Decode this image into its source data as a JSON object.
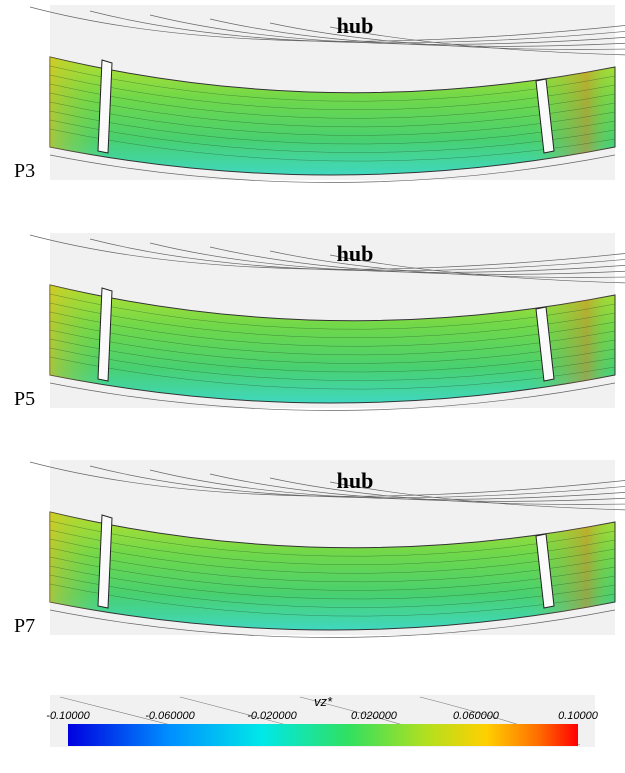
{
  "panels": [
    {
      "label": "P3",
      "hub": "hub"
    },
    {
      "label": "P5",
      "hub": "hub"
    },
    {
      "label": "P7",
      "hub": "hub"
    }
  ],
  "colorbar": {
    "title": "vz*",
    "ticks": [
      "-0.10000",
      "-0.060000",
      "-0.020000",
      "0.020000",
      "0.060000",
      "0.10000"
    ]
  }
}
